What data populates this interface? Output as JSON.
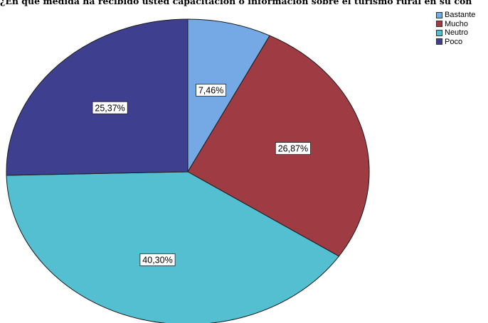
{
  "chart_data": {
    "type": "pie",
    "title": "¿En qué medida ha recibido usted capacitación o información sobre el turismo rural en su con",
    "categories": [
      "Bastante",
      "Mucho",
      "Neutro",
      "Poco"
    ],
    "values": [
      7.46,
      26.87,
      40.3,
      25.37
    ],
    "data_labels": [
      "7,46%",
      "26,87%",
      "40,30%",
      "25,37%"
    ],
    "colors": [
      "#74a9e6",
      "#9e3b43",
      "#55bfd2",
      "#3e3f8e"
    ],
    "legend_position": "top-right",
    "start_angle": "12 o'clock",
    "direction": "clockwise"
  }
}
